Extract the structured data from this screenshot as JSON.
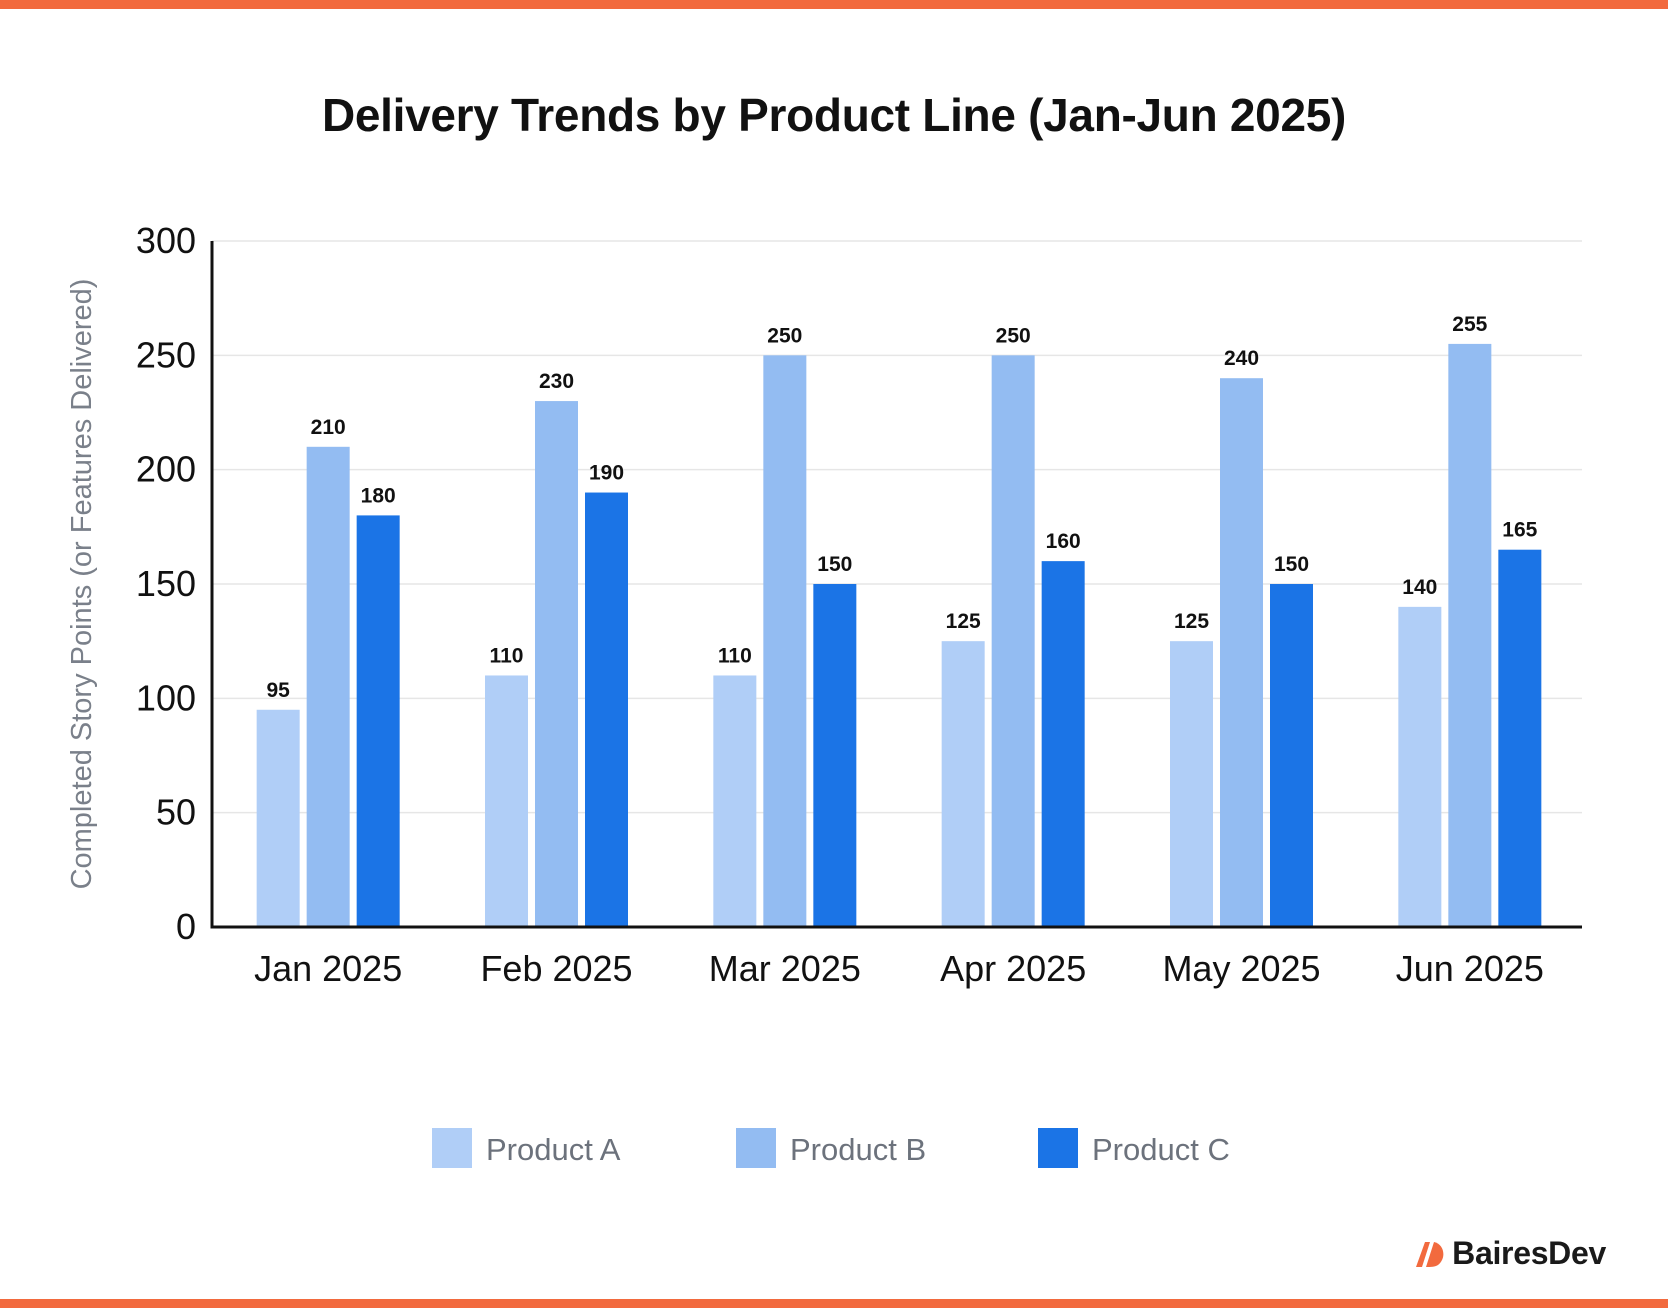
{
  "colors": {
    "accent": "#f26a3e",
    "product_a": "#b0cef7",
    "product_b": "#93bcf2",
    "product_c": "#1b74e6",
    "axis": "#111111",
    "grid": "#e6e6e6",
    "ylabel": "#7a808a",
    "legend_text": "#6c727c"
  },
  "brand": {
    "name": "BairesDev",
    "icon": "bairesdev-logo-icon"
  },
  "chart_data": {
    "type": "bar",
    "title": "Delivery Trends by Product Line (Jan-Jun 2025)",
    "xlabel": "",
    "ylabel": "Completed Story Points (or Features Delivered)",
    "ylim": [
      0,
      300
    ],
    "yticks": [
      "0",
      "50",
      "100",
      "150",
      "200",
      "250",
      "300"
    ],
    "grid": true,
    "legend_position": "bottom-center",
    "categories": [
      "Jan 2025",
      "Feb 2025",
      "Mar 2025",
      "Apr 2025",
      "May 2025",
      "Jun 2025"
    ],
    "series": [
      {
        "name": "Product A",
        "values": [
          95,
          110,
          110,
          125,
          125,
          140
        ]
      },
      {
        "name": "Product B",
        "values": [
          210,
          230,
          250,
          250,
          240,
          255
        ]
      },
      {
        "name": "Product C",
        "values": [
          180,
          190,
          150,
          160,
          150,
          165
        ]
      }
    ]
  }
}
